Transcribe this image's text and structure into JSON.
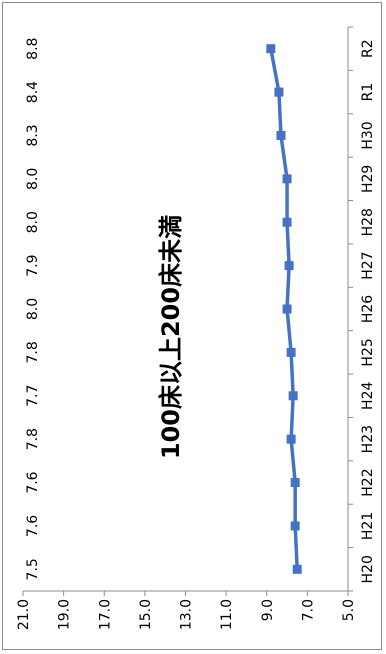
{
  "chart_data": {
    "type": "line",
    "orientation": "rotated-90-clockwise",
    "title": "100床以上200床未満",
    "categories": [
      "H20",
      "H21",
      "H22",
      "H23",
      "H24",
      "H25",
      "H26",
      "H27",
      "H28",
      "H29",
      "H30",
      "R1",
      "R2"
    ],
    "values": [
      7.5,
      7.6,
      7.6,
      7.8,
      7.7,
      7.8,
      8.0,
      7.9,
      8.0,
      8.0,
      8.3,
      8.4,
      8.8
    ],
    "value_labels": [
      "7.5",
      "7.6",
      "7.6",
      "7.8",
      "7.7",
      "7.8",
      "8.0",
      "7.9",
      "8.0",
      "8.0",
      "8.3",
      "8.4",
      "8.8"
    ],
    "y_ticks": [
      "5.0",
      "7.0",
      "9.0",
      "11.0",
      "13.0",
      "15.0",
      "17.0",
      "19.0",
      "21.0"
    ],
    "ylim": [
      5.0,
      21.0
    ],
    "xlabel": "",
    "ylabel": "",
    "grid": false,
    "legend": "none",
    "colors": {
      "series": "#4472c4",
      "axis": "#8c8c8c",
      "text": "#000000"
    }
  }
}
